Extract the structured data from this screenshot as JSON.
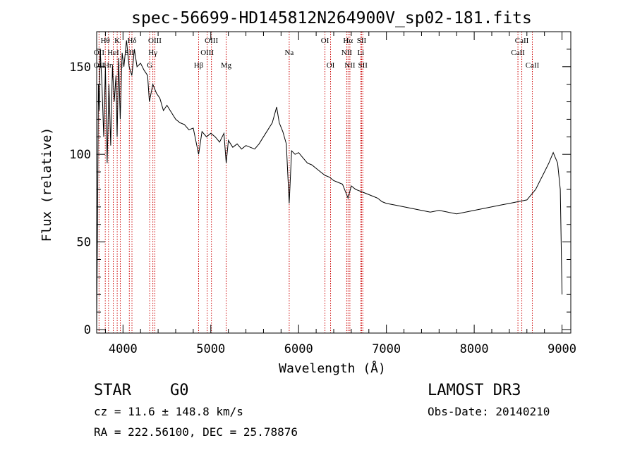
{
  "chart_data": {
    "type": "line",
    "title": "spec-56699-HD145812N264900V_sp02-181.fits",
    "xlabel": "Wavelength (Å)",
    "ylabel": "Flux (relative)",
    "xlim": [
      3700,
      9100
    ],
    "ylim": [
      -2,
      170
    ],
    "xticks": [
      4000,
      5000,
      6000,
      7000,
      8000,
      9000
    ],
    "yticks": [
      0,
      50,
      100,
      150
    ],
    "grid": false,
    "series": [
      {
        "name": "Flux",
        "x": [
          3700,
          3710,
          3720,
          3730,
          3740,
          3760,
          3780,
          3800,
          3820,
          3840,
          3860,
          3880,
          3900,
          3920,
          3933,
          3950,
          3968,
          3990,
          4010,
          4040,
          4070,
          4101,
          4130,
          4160,
          4200,
          4240,
          4280,
          4300,
          4340,
          4380,
          4420,
          4460,
          4500,
          4550,
          4600,
          4650,
          4700,
          4750,
          4800,
          4861,
          4900,
          4950,
          5000,
          5050,
          5100,
          5150,
          5175,
          5200,
          5250,
          5300,
          5350,
          5400,
          5450,
          5500,
          5550,
          5600,
          5650,
          5700,
          5750,
          5780,
          5820,
          5860,
          5893,
          5920,
          5960,
          6000,
          6050,
          6100,
          6150,
          6200,
          6250,
          6300,
          6350,
          6400,
          6450,
          6500,
          6563,
          6600,
          6650,
          6700,
          6750,
          6800,
          6850,
          6900,
          6950,
          7000,
          7100,
          7200,
          7300,
          7400,
          7500,
          7600,
          7700,
          7800,
          7900,
          8000,
          8100,
          8200,
          8300,
          8400,
          8500,
          8600,
          8700,
          8750,
          8800,
          8850,
          8900,
          8950,
          8980,
          9000
        ],
        "values": [
          2,
          60,
          140,
          125,
          160,
          140,
          110,
          150,
          95,
          140,
          105,
          150,
          130,
          145,
          110,
          155,
          120,
          158,
          150,
          165,
          150,
          145,
          160,
          150,
          152,
          148,
          145,
          130,
          140,
          135,
          132,
          125,
          128,
          124,
          120,
          118,
          117,
          114,
          115,
          100,
          113,
          110,
          112,
          110,
          107,
          112,
          95,
          108,
          104,
          106,
          103,
          105,
          104,
          103,
          106,
          110,
          114,
          118,
          127,
          118,
          113,
          106,
          72,
          102,
          100,
          101,
          98,
          95,
          94,
          92,
          90,
          88,
          87,
          85,
          84,
          83,
          75,
          82,
          80,
          79,
          78,
          77,
          76,
          75,
          73,
          72,
          71,
          70,
          69,
          68,
          67,
          68,
          67,
          66,
          67,
          68,
          69,
          70,
          71,
          72,
          73,
          74,
          80,
          85,
          90,
          95,
          101,
          95,
          80,
          20
        ]
      }
    ],
    "lines": [
      {
        "label": "Hθ",
        "x": 3798,
        "row": 0
      },
      {
        "label": "OII",
        "x": 3727,
        "row": 1
      },
      {
        "label": "OII",
        "x": 3727,
        "row": 2
      },
      {
        "label": "Hη",
        "x": 3835,
        "row": 2
      },
      {
        "label": "HeI",
        "x": 3889,
        "row": 1
      },
      {
        "label": "K",
        "x": 3934,
        "row": 0
      },
      {
        "label": "H",
        "x": 3969,
        "row": 2
      },
      {
        "label": "SII",
        "x": 4072,
        "row": 1
      },
      {
        "label": "Hδ",
        "x": 4102,
        "row": 0
      },
      {
        "label": "OIII",
        "x": 4363,
        "row": 0
      },
      {
        "label": "Hγ",
        "x": 4340,
        "row": 1
      },
      {
        "label": "G",
        "x": 4304,
        "row": 2
      },
      {
        "label": "Hβ",
        "x": 4861,
        "row": 2
      },
      {
        "label": "OIII",
        "x": 5007,
        "row": 0
      },
      {
        "label": "OIII",
        "x": 4959,
        "row": 1
      },
      {
        "label": "Mg",
        "x": 5175,
        "row": 2
      },
      {
        "label": "Na",
        "x": 5893,
        "row": 1
      },
      {
        "label": "OI",
        "x": 6300,
        "row": 0
      },
      {
        "label": "OI",
        "x": 6364,
        "row": 2
      },
      {
        "label": "Hα",
        "x": 6563,
        "row": 0
      },
      {
        "label": "NII",
        "x": 6548,
        "row": 1
      },
      {
        "label": "NII",
        "x": 6584,
        "row": 2
      },
      {
        "label": "SII",
        "x": 6717,
        "row": 0
      },
      {
        "label": "Li",
        "x": 6708,
        "row": 1
      },
      {
        "label": "SII",
        "x": 6731,
        "row": 2
      },
      {
        "label": "CaII",
        "x": 8542,
        "row": 0
      },
      {
        "label": "CaII",
        "x": 8498,
        "row": 1
      },
      {
        "label": "CaII",
        "x": 8662,
        "row": 2
      }
    ]
  },
  "info": {
    "object_class": "STAR",
    "subclass": "G0",
    "survey": "LAMOST DR3",
    "cz": "cz = 11.6 ± 148.8 km/s",
    "obs_date": "Obs-Date: 20140210",
    "coords": "RA = 222.56100, DEC =  25.78876"
  },
  "colors": {
    "line_markers": "#cc0000",
    "spectrum": "#000000",
    "axes": "#000000"
  }
}
